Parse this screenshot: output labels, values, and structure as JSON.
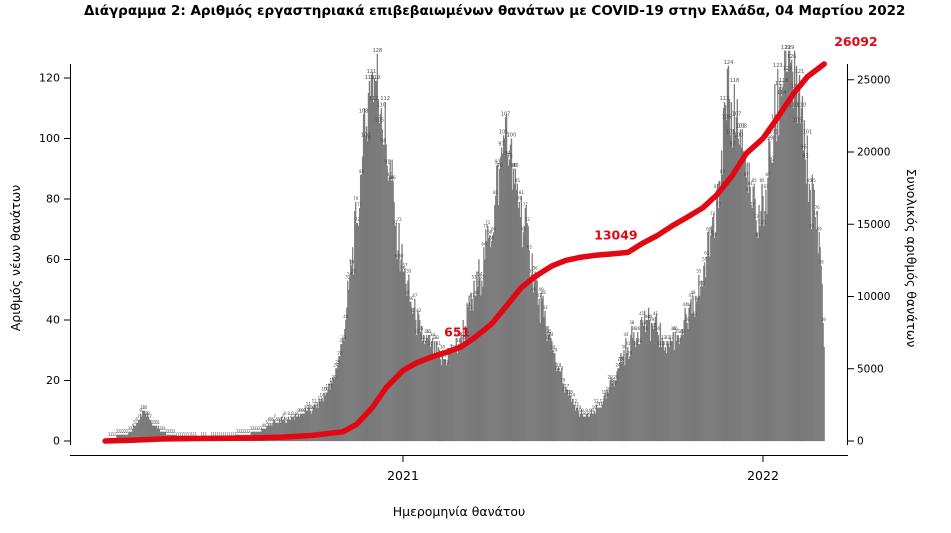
{
  "title": "Διάγραμμα 2: Αριθμός εργαστηριακά επιβεβαιωμένων θανάτων με COVID-19 στην Ελλάδα, 04 Μαρτίου 2022",
  "colors": {
    "bar": "#7d7d7d",
    "bar_edge": "#6b6b6b",
    "bar_label": "#4a4a4a",
    "line": "#e30613",
    "annotation": "#e30613",
    "axis": "#000000"
  },
  "axes": {
    "left": {
      "label": "Αριθμός νέων θανάτων",
      "ticks": [
        0,
        20,
        40,
        60,
        80,
        100,
        120
      ]
    },
    "right": {
      "label": "Συνολικός αριθμός θανάτων",
      "ticks": [
        0,
        5000,
        10000,
        15000,
        20000,
        25000
      ]
    },
    "x": {
      "label": "Ημερομηνία θανάτου",
      "ticks": [
        {
          "label": "2021",
          "date": "2021-01-01"
        },
        {
          "label": "2022",
          "date": "2022-01-01"
        }
      ]
    }
  },
  "chart_data": {
    "type": "bar",
    "title": "Διάγραμμα 2: Αριθμός εργαστηριακά επιβεβαιωμένων θανάτων με COVID-19 στην Ελλάδα, 04 Μαρτίου 2022",
    "xlabel": "Ημερομηνία θανάτου",
    "ylabel_left": "Αριθμός νέων θανάτων",
    "ylabel_right": "Συνολικός αριθμός θανάτων",
    "ylim_left": [
      0,
      130
    ],
    "ylim_right": [
      0,
      26500
    ],
    "grid": false,
    "x_start": "2020-03-05",
    "x_step_days": 5,
    "daily_new_deaths_sampled": [
      0,
      1,
      1,
      2,
      2,
      3,
      5,
      7,
      10,
      7,
      5,
      4,
      3,
      2,
      2,
      1,
      1,
      1,
      1,
      0,
      1,
      0,
      1,
      1,
      1,
      1,
      1,
      2,
      2,
      2,
      3,
      3,
      4,
      5,
      6,
      6,
      7,
      7,
      8,
      8,
      9,
      10,
      10,
      12,
      14,
      16,
      19,
      24,
      32,
      44,
      58,
      72,
      88,
      104,
      121,
      119,
      110,
      98,
      86,
      72,
      60,
      52,
      46,
      40,
      36,
      33,
      31,
      29,
      27,
      27,
      29,
      31,
      34,
      38,
      43,
      48,
      54,
      60,
      68,
      78,
      90,
      100,
      93,
      85,
      79,
      71,
      63,
      55,
      47,
      41,
      35,
      29,
      24,
      19,
      15,
      12,
      10,
      8,
      8,
      9,
      11,
      13,
      16,
      20,
      24,
      28,
      31,
      34,
      36,
      39,
      40,
      38,
      36,
      34,
      33,
      33,
      35,
      37,
      39,
      42,
      46,
      53,
      61,
      71,
      83,
      96,
      106,
      112,
      107,
      97,
      87,
      78,
      73,
      76,
      83,
      93,
      106,
      118,
      129,
      125,
      116,
      105,
      93,
      83,
      74,
      64,
      25
    ],
    "cumulative_deaths": {
      "name": "Συνολικός αριθμός θανάτων",
      "points": [
        [
          "2020-03-05",
          0
        ],
        [
          "2020-04-01",
          50
        ],
        [
          "2020-05-01",
          140
        ],
        [
          "2020-06-01",
          175
        ],
        [
          "2020-07-01",
          193
        ],
        [
          "2020-08-01",
          210
        ],
        [
          "2020-09-01",
          270
        ],
        [
          "2020-10-01",
          390
        ],
        [
          "2020-11-01",
          640
        ],
        [
          "2020-11-15",
          1150
        ],
        [
          "2020-12-01",
          2320
        ],
        [
          "2020-12-15",
          3700
        ],
        [
          "2021-01-01",
          4880
        ],
        [
          "2021-01-15",
          5420
        ],
        [
          "2021-02-01",
          5860
        ],
        [
          "2021-02-15",
          6160
        ],
        [
          "2021-03-01",
          6510
        ],
        [
          "2021-03-15",
          7170
        ],
        [
          "2021-04-01",
          8110
        ],
        [
          "2021-04-15",
          9270
        ],
        [
          "2021-05-01",
          10620
        ],
        [
          "2021-05-15",
          11390
        ],
        [
          "2021-06-01",
          12120
        ],
        [
          "2021-06-15",
          12500
        ],
        [
          "2021-07-01",
          12730
        ],
        [
          "2021-07-15",
          12850
        ],
        [
          "2021-08-01",
          12950
        ],
        [
          "2021-08-17",
          13049
        ],
        [
          "2021-09-01",
          13690
        ],
        [
          "2021-09-15",
          14190
        ],
        [
          "2021-10-01",
          14890
        ],
        [
          "2021-10-15",
          15440
        ],
        [
          "2021-11-01",
          16140
        ],
        [
          "2021-11-15",
          17020
        ],
        [
          "2021-12-01",
          18390
        ],
        [
          "2021-12-15",
          19890
        ],
        [
          "2022-01-01",
          20940
        ],
        [
          "2022-01-15",
          22300
        ],
        [
          "2022-02-01",
          24040
        ],
        [
          "2022-02-15",
          25210
        ],
        [
          "2022-03-04",
          26092
        ]
      ]
    },
    "annotations": [
      {
        "text": "651",
        "date": "2021-02-25",
        "value": 6400
      },
      {
        "text": "13049",
        "date": "2021-08-17",
        "value": 13049
      },
      {
        "text": "26092",
        "date": "2022-03-04",
        "value": 26092
      }
    ]
  }
}
